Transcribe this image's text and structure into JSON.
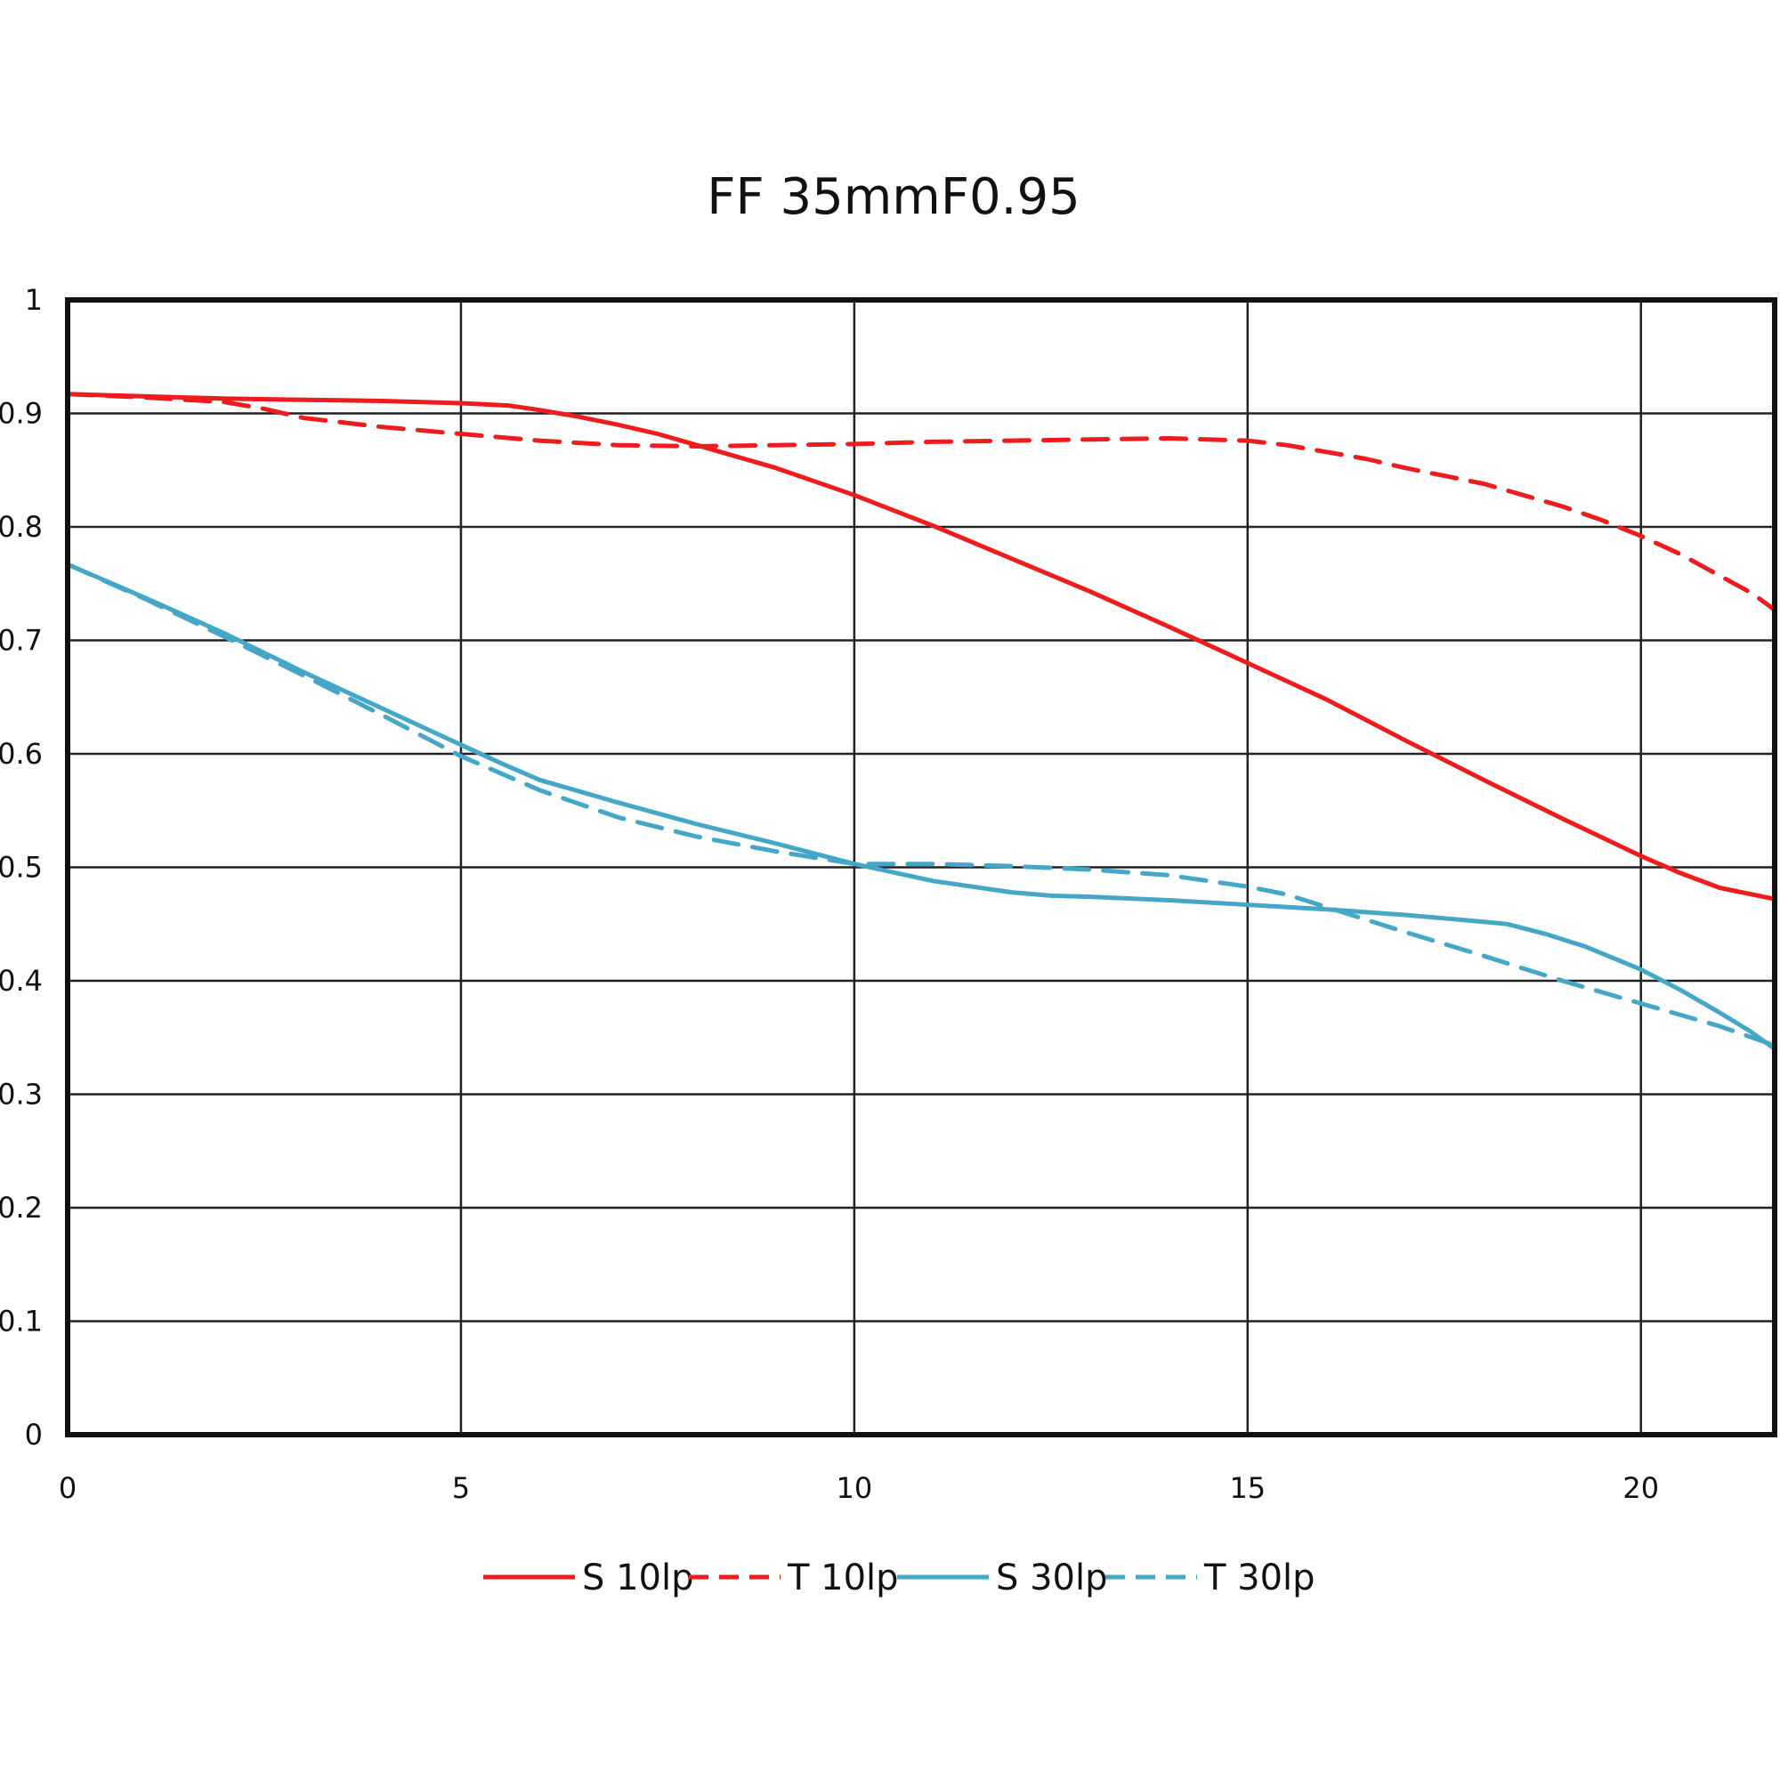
{
  "chart_data": {
    "type": "line",
    "title": "FF 35mmF0.95",
    "xlabel": "",
    "ylabel": "",
    "xlim": [
      0,
      21.7
    ],
    "ylim": [
      0,
      1
    ],
    "x_ticks": [
      0,
      5,
      10,
      15,
      20
    ],
    "x_tick_labels": [
      "0",
      "5",
      "10",
      "15",
      "20"
    ],
    "y_ticks": [
      0,
      0.1,
      0.2,
      0.3,
      0.4,
      0.5,
      0.6,
      0.7,
      0.8,
      0.9,
      1
    ],
    "y_tick_labels": [
      "0",
      "0.1",
      "0.2",
      "0.3",
      "0.4",
      "0.5",
      "0.6",
      "0.7",
      "0.8",
      "0.9",
      "1"
    ],
    "grid": true,
    "legend_position": "bottom",
    "series": [
      {
        "name": "S 10lp",
        "color": "#ee1c1c",
        "dash": "solid",
        "points": [
          [
            0,
            0.917
          ],
          [
            1,
            0.915
          ],
          [
            2,
            0.913
          ],
          [
            3,
            0.912
          ],
          [
            4,
            0.911
          ],
          [
            5,
            0.909
          ],
          [
            5.6,
            0.907
          ],
          [
            6,
            0.903
          ],
          [
            6.5,
            0.897
          ],
          [
            7,
            0.89
          ],
          [
            7.5,
            0.882
          ],
          [
            8,
            0.872
          ],
          [
            9,
            0.852
          ],
          [
            10,
            0.828
          ],
          [
            11,
            0.801
          ],
          [
            12,
            0.772
          ],
          [
            13,
            0.743
          ],
          [
            14,
            0.712
          ],
          [
            15,
            0.68
          ],
          [
            15.5,
            0.664
          ],
          [
            16,
            0.648
          ],
          [
            17,
            0.612
          ],
          [
            18,
            0.577
          ],
          [
            19,
            0.543
          ],
          [
            20,
            0.51
          ],
          [
            20.5,
            0.495
          ],
          [
            21,
            0.482
          ],
          [
            21.7,
            0.472
          ]
        ]
      },
      {
        "name": "T 10lp",
        "color": "#ee1c1c",
        "dash": "dashed",
        "points": [
          [
            0,
            0.917
          ],
          [
            1,
            0.914
          ],
          [
            2,
            0.91
          ],
          [
            2.5,
            0.904
          ],
          [
            3,
            0.896
          ],
          [
            4,
            0.888
          ],
          [
            5,
            0.882
          ],
          [
            6,
            0.876
          ],
          [
            7,
            0.872
          ],
          [
            8,
            0.871
          ],
          [
            9,
            0.872
          ],
          [
            10,
            0.873
          ],
          [
            11,
            0.875
          ],
          [
            12,
            0.876
          ],
          [
            13,
            0.877
          ],
          [
            14,
            0.878
          ],
          [
            15,
            0.876
          ],
          [
            15.5,
            0.872
          ],
          [
            16,
            0.866
          ],
          [
            16.5,
            0.86
          ],
          [
            17,
            0.852
          ],
          [
            18,
            0.838
          ],
          [
            19,
            0.818
          ],
          [
            19.5,
            0.806
          ],
          [
            20,
            0.792
          ],
          [
            20.5,
            0.776
          ],
          [
            21,
            0.757
          ],
          [
            21.4,
            0.742
          ],
          [
            21.7,
            0.727
          ]
        ]
      },
      {
        "name": "S 30lp",
        "color": "#45a7c8",
        "dash": "solid",
        "points": [
          [
            0,
            0.767
          ],
          [
            1,
            0.737
          ],
          [
            2,
            0.706
          ],
          [
            3,
            0.672
          ],
          [
            4,
            0.64
          ],
          [
            5,
            0.608
          ],
          [
            5.5,
            0.592
          ],
          [
            6,
            0.577
          ],
          [
            7,
            0.557
          ],
          [
            8,
            0.538
          ],
          [
            9,
            0.521
          ],
          [
            10,
            0.503
          ],
          [
            11,
            0.488
          ],
          [
            12,
            0.478
          ],
          [
            12.5,
            0.475
          ],
          [
            13,
            0.474
          ],
          [
            14,
            0.471
          ],
          [
            15,
            0.467
          ],
          [
            16,
            0.463
          ],
          [
            17,
            0.458
          ],
          [
            18,
            0.452
          ],
          [
            18.3,
            0.45
          ],
          [
            18.8,
            0.441
          ],
          [
            19.3,
            0.43
          ],
          [
            20,
            0.41
          ],
          [
            20.5,
            0.392
          ],
          [
            21,
            0.372
          ],
          [
            21.4,
            0.355
          ],
          [
            21.7,
            0.34
          ]
        ]
      },
      {
        "name": "T 30lp",
        "color": "#45a7c8",
        "dash": "dashed",
        "points": [
          [
            0,
            0.767
          ],
          [
            1,
            0.736
          ],
          [
            2,
            0.703
          ],
          [
            3,
            0.669
          ],
          [
            4,
            0.634
          ],
          [
            5,
            0.598
          ],
          [
            6,
            0.568
          ],
          [
            7,
            0.544
          ],
          [
            8,
            0.527
          ],
          [
            9,
            0.514
          ],
          [
            10,
            0.503
          ],
          [
            10.5,
            0.503
          ],
          [
            11,
            0.503
          ],
          [
            12,
            0.501
          ],
          [
            13,
            0.498
          ],
          [
            14,
            0.493
          ],
          [
            15,
            0.483
          ],
          [
            15.5,
            0.476
          ],
          [
            16,
            0.465
          ],
          [
            17,
            0.443
          ],
          [
            18,
            0.422
          ],
          [
            19,
            0.4
          ],
          [
            20,
            0.38
          ],
          [
            21,
            0.36
          ],
          [
            21.7,
            0.343
          ]
        ]
      }
    ]
  }
}
